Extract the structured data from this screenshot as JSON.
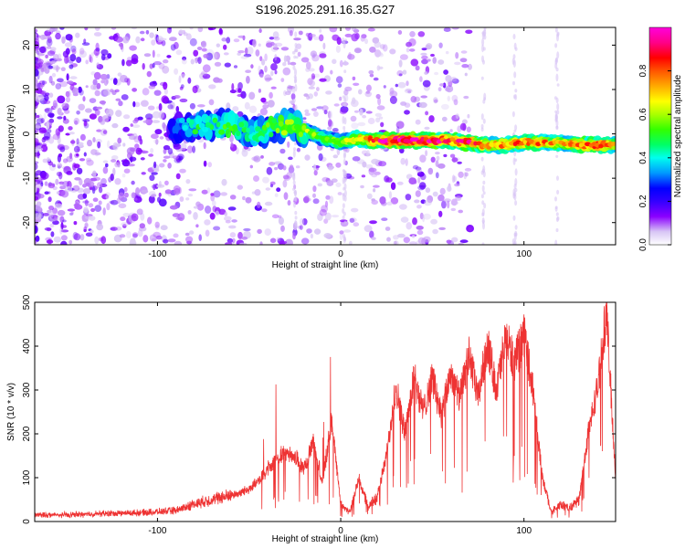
{
  "chart_data": [
    {
      "type": "heatmap",
      "title": "S196.2025.291.16.35.G27",
      "xlabel": "Height of straight line (km)",
      "ylabel": "Frequency (Hz)",
      "xlim": [
        -167,
        150
      ],
      "ylim": [
        -25,
        24
      ],
      "xticks": [
        -100,
        0,
        100
      ],
      "yticks": [
        -20,
        -10,
        0,
        10,
        20
      ],
      "xtick_labels": [
        "-100",
        "0",
        "100"
      ],
      "ytick_labels": [
        "-20",
        "-10",
        "0",
        "10",
        "20"
      ],
      "ridge": {
        "x": [
          -90,
          -80,
          -70,
          -60,
          -50,
          -40,
          -30,
          -20,
          -10,
          0,
          10,
          20,
          30,
          40,
          50,
          60,
          70,
          80,
          90,
          100,
          110,
          120,
          130,
          140,
          150
        ],
        "frequency": [
          1,
          2,
          2,
          2,
          0,
          1,
          2,
          1,
          -1,
          -2,
          -1,
          -1.5,
          -1.5,
          -1.5,
          -1.5,
          -1.5,
          -2,
          -2.5,
          -2.5,
          -2,
          -2,
          -2,
          -2.5,
          -2.5,
          -2.5
        ],
        "amplitude": [
          0.3,
          0.45,
          0.45,
          0.5,
          0.45,
          0.5,
          0.55,
          0.6,
          0.55,
          0.6,
          0.7,
          0.85,
          0.95,
          0.95,
          0.9,
          0.85,
          0.85,
          0.75,
          0.75,
          0.8,
          0.75,
          0.7,
          0.8,
          0.85,
          0.7
        ]
      },
      "noise_region": {
        "x_from": -167,
        "x_to": -55,
        "description": "scattered low-amplitude noise"
      },
      "colorbar": {
        "label": "Normalized spectral amplitude",
        "range": [
          0,
          1
        ],
        "ticks": [
          0.0,
          0.2,
          0.4,
          0.6,
          0.8
        ],
        "tick_labels": [
          "0.0",
          "0.2",
          "0.4",
          "0.6",
          "0.8"
        ],
        "colors": [
          "#ffffff",
          "#d8c6f5",
          "#8a00ff",
          "#3300ff",
          "#0000ff",
          "#0099ff",
          "#00ffee",
          "#00ff66",
          "#33ff00",
          "#aaff00",
          "#ffff00",
          "#ffaa00",
          "#ff5500",
          "#ff0000",
          "#ff0088",
          "#ff00dd"
        ]
      }
    },
    {
      "type": "line",
      "xlabel": "Height of straight line (km)",
      "ylabel": "SNR (10 * v/v)",
      "xlim": [
        -167,
        150
      ],
      "ylim": [
        0,
        500
      ],
      "xticks": [
        -100,
        0,
        100
      ],
      "yticks": [
        0,
        100,
        200,
        300,
        400,
        500
      ],
      "xtick_labels": [
        "-100",
        "0",
        "100"
      ],
      "ytick_labels": [
        "0",
        "100",
        "200",
        "300",
        "400",
        "500"
      ],
      "color": "#ee3333",
      "series": [
        {
          "name": "SNR",
          "x": [
            -167,
            -150,
            -130,
            -110,
            -100,
            -90,
            -80,
            -70,
            -60,
            -55,
            -50,
            -45,
            -40,
            -35,
            -30,
            -25,
            -20,
            -15,
            -10,
            -5,
            0,
            5,
            10,
            15,
            20,
            25,
            30,
            35,
            40,
            45,
            50,
            55,
            60,
            65,
            70,
            75,
            80,
            85,
            90,
            95,
            100,
            105,
            110,
            115,
            120,
            125,
            130,
            135,
            140,
            145,
            150
          ],
          "values": [
            15,
            15,
            18,
            20,
            22,
            25,
            40,
            50,
            60,
            65,
            75,
            90,
            120,
            140,
            160,
            150,
            120,
            180,
            90,
            230,
            40,
            20,
            100,
            30,
            60,
            150,
            310,
            200,
            330,
            250,
            330,
            240,
            340,
            280,
            380,
            280,
            410,
            300,
            420,
            360,
            430,
            300,
            100,
            20,
            40,
            30,
            50,
            200,
            300,
            480,
            100
          ]
        }
      ]
    }
  ]
}
